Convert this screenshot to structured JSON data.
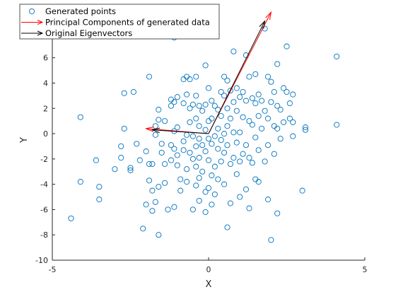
{
  "chart_data": {
    "type": "scatter",
    "xlabel": "X",
    "ylabel": "Y",
    "xlim": [
      -5,
      5
    ],
    "ylim": [
      -10,
      9
    ],
    "xticks": [
      -5,
      0,
      5
    ],
    "yticks": [
      -10,
      -8,
      -6,
      -4,
      -2,
      0,
      2,
      4,
      6,
      8
    ],
    "grid": false,
    "legend_position": "top-left",
    "legend": [
      {
        "label": "Generated points",
        "marker": "circle",
        "color": "#0072BD"
      },
      {
        "label": "Principal Components of generated data",
        "marker": "arrow",
        "color": "#FF0000"
      },
      {
        "label": "Original Eigenvectors",
        "marker": "arrow",
        "color": "#000000"
      }
    ],
    "series": [
      {
        "name": "Generated points",
        "color": "#0072BD",
        "points": [
          [
            -4.4,
            -6.7
          ],
          [
            -4.1,
            -3.8
          ],
          [
            -4.1,
            1.3
          ],
          [
            -3.6,
            -2.1
          ],
          [
            -3.5,
            -4.2
          ],
          [
            -3.5,
            -5.2
          ],
          [
            -3.0,
            -2.8
          ],
          [
            -2.8,
            -1.0
          ],
          [
            -2.8,
            -1.9
          ],
          [
            -2.7,
            3.2
          ],
          [
            -2.7,
            0.4
          ],
          [
            -2.5,
            -2.7
          ],
          [
            -2.5,
            -2.9
          ],
          [
            -2.4,
            3.3
          ],
          [
            -2.3,
            -0.8
          ],
          [
            -2.2,
            -2.1
          ],
          [
            -2.1,
            -7.5
          ],
          [
            -2.0,
            -1.4
          ],
          [
            -2.0,
            -5.6
          ],
          [
            -1.9,
            4.5
          ],
          [
            -1.9,
            -2.4
          ],
          [
            -1.9,
            -3.7
          ],
          [
            -1.8,
            -2.4
          ],
          [
            -1.8,
            -4.5
          ],
          [
            -1.8,
            -6.1
          ],
          [
            -1.7,
            -5.4
          ],
          [
            -1.7,
            0.6
          ],
          [
            -1.7,
            -0.1
          ],
          [
            -1.6,
            1.9
          ],
          [
            -1.6,
            1.1
          ],
          [
            -1.6,
            -4.2
          ],
          [
            -1.6,
            -8.0
          ],
          [
            -1.5,
            -0.8
          ],
          [
            -1.5,
            -1.5
          ],
          [
            -1.4,
            1.0
          ],
          [
            -1.4,
            -2.4
          ],
          [
            -1.4,
            -3.9
          ],
          [
            -1.3,
            -6.0
          ],
          [
            -1.2,
            2.7
          ],
          [
            -1.2,
            2.2
          ],
          [
            -1.2,
            -0.9
          ],
          [
            -1.2,
            -2.1
          ],
          [
            -1.1,
            7.6
          ],
          [
            -1.1,
            2.5
          ],
          [
            -1.1,
            0.2
          ],
          [
            -1.1,
            -1.2
          ],
          [
            -1.1,
            -5.8
          ],
          [
            -1.0,
            2.9
          ],
          [
            -1.0,
            0.5
          ],
          [
            -1.0,
            -1.7
          ],
          [
            -1.0,
            -2.5
          ],
          [
            -0.9,
            -3.6
          ],
          [
            -0.9,
            -4.5
          ],
          [
            -0.8,
            4.3
          ],
          [
            -0.8,
            2.4
          ],
          [
            -0.8,
            -0.6
          ],
          [
            -0.8,
            -1.3
          ],
          [
            -0.7,
            4.5
          ],
          [
            -0.7,
            3.1
          ],
          [
            -0.7,
            -0.1
          ],
          [
            -0.7,
            -2.8
          ],
          [
            -0.7,
            -3.8
          ],
          [
            -0.6,
            4.3
          ],
          [
            -0.6,
            2.0
          ],
          [
            -0.6,
            0.9
          ],
          [
            -0.6,
            -1.5
          ],
          [
            -0.5,
            2.3
          ],
          [
            -0.5,
            -0.2
          ],
          [
            -0.5,
            -2.0
          ],
          [
            -0.5,
            -6.0
          ],
          [
            -0.4,
            4.5
          ],
          [
            -0.4,
            3.0
          ],
          [
            -0.4,
            1.2
          ],
          [
            -0.4,
            -1.0
          ],
          [
            -0.4,
            -2.6
          ],
          [
            -0.4,
            -4.1
          ],
          [
            -0.3,
            2.2
          ],
          [
            -0.3,
            0.6
          ],
          [
            -0.3,
            -0.4
          ],
          [
            -0.3,
            -1.9
          ],
          [
            -0.3,
            -3.5
          ],
          [
            -0.3,
            -5.3
          ],
          [
            -0.2,
            1.8
          ],
          [
            -0.2,
            -0.9
          ],
          [
            -0.2,
            -3.0
          ],
          [
            -0.1,
            5.4
          ],
          [
            -0.1,
            2.3
          ],
          [
            -0.1,
            0.3
          ],
          [
            -0.1,
            -1.4
          ],
          [
            -0.1,
            -4.6
          ],
          [
            -0.1,
            -6.2
          ],
          [
            0.0,
            3.6
          ],
          [
            0.0,
            1.0
          ],
          [
            0.0,
            -0.4
          ],
          [
            0.0,
            -2.1
          ],
          [
            0.0,
            -4.3
          ],
          [
            0.1,
            2.6
          ],
          [
            0.1,
            1.2
          ],
          [
            0.1,
            -0.8
          ],
          [
            0.1,
            -3.3
          ],
          [
            0.1,
            -5.6
          ],
          [
            0.2,
            2.2
          ],
          [
            0.2,
            -0.2
          ],
          [
            0.2,
            -2.6
          ],
          [
            0.2,
            -4.8
          ],
          [
            0.3,
            1.9
          ],
          [
            0.3,
            0.4
          ],
          [
            0.3,
            -1.2
          ],
          [
            0.3,
            -3.6
          ],
          [
            0.4,
            3.3
          ],
          [
            0.4,
            1.4
          ],
          [
            0.4,
            -0.5
          ],
          [
            0.4,
            -2.2
          ],
          [
            0.5,
            4.5
          ],
          [
            0.5,
            3.0
          ],
          [
            0.5,
            0.0
          ],
          [
            0.5,
            -1.5
          ],
          [
            0.5,
            -4.0
          ],
          [
            0.6,
            4.2
          ],
          [
            0.6,
            2.0
          ],
          [
            0.6,
            0.6
          ],
          [
            0.6,
            -0.9
          ],
          [
            0.6,
            -7.4
          ],
          [
            0.7,
            3.4
          ],
          [
            0.7,
            1.2
          ],
          [
            0.7,
            -2.4
          ],
          [
            0.7,
            -5.5
          ],
          [
            0.8,
            6.5
          ],
          [
            0.8,
            2.5
          ],
          [
            0.8,
            0.1
          ],
          [
            0.8,
            -1.9
          ],
          [
            0.9,
            3.6
          ],
          [
            0.9,
            1.8
          ],
          [
            0.9,
            -0.7
          ],
          [
            0.9,
            -3.2
          ],
          [
            1.0,
            2.9
          ],
          [
            1.0,
            0.1
          ],
          [
            1.0,
            -2.2
          ],
          [
            1.0,
            -5.0
          ],
          [
            1.1,
            3.3
          ],
          [
            1.1,
            1.3
          ],
          [
            1.1,
            -1.6
          ],
          [
            1.2,
            6.2
          ],
          [
            1.2,
            2.6
          ],
          [
            1.2,
            -0.9
          ],
          [
            1.2,
            -4.4
          ],
          [
            1.3,
            4.5
          ],
          [
            1.3,
            1.0
          ],
          [
            1.3,
            -1.9
          ],
          [
            1.3,
            -5.9
          ],
          [
            1.4,
            2.8
          ],
          [
            1.4,
            0.7
          ],
          [
            1.4,
            -2.3
          ],
          [
            1.5,
            4.7
          ],
          [
            1.5,
            2.4
          ],
          [
            1.5,
            -0.3
          ],
          [
            1.5,
            -3.6
          ],
          [
            1.6,
            3.1
          ],
          [
            1.6,
            1.4
          ],
          [
            1.6,
            -1.3
          ],
          [
            1.6,
            -3.8
          ],
          [
            1.7,
            2.6
          ],
          [
            1.7,
            0.4
          ],
          [
            1.8,
            8.3
          ],
          [
            1.8,
            1.8
          ],
          [
            1.8,
            -2.2
          ],
          [
            1.9,
            4.5
          ],
          [
            1.9,
            1.2
          ],
          [
            1.9,
            -0.9
          ],
          [
            1.9,
            -5.2
          ],
          [
            2.0,
            4.1
          ],
          [
            2.0,
            2.5
          ],
          [
            2.0,
            -8.4
          ],
          [
            2.1,
            3.3
          ],
          [
            2.1,
            0.6
          ],
          [
            2.1,
            -1.6
          ],
          [
            2.2,
            5.5
          ],
          [
            2.2,
            2.2
          ],
          [
            2.2,
            0.4
          ],
          [
            2.2,
            -6.3
          ],
          [
            2.3,
            1.9
          ],
          [
            2.3,
            -0.4
          ],
          [
            2.4,
            3.6
          ],
          [
            2.4,
            0.9
          ],
          [
            2.5,
            6.9
          ],
          [
            2.5,
            3.3
          ],
          [
            2.6,
            2.4
          ],
          [
            2.6,
            1.2
          ],
          [
            2.7,
            3.1
          ],
          [
            2.7,
            0.9
          ],
          [
            2.7,
            -0.2
          ],
          [
            3.0,
            -4.5
          ],
          [
            3.1,
            0.3
          ],
          [
            3.1,
            0.5
          ],
          [
            4.1,
            6.1
          ],
          [
            4.1,
            0.7
          ]
        ]
      }
    ],
    "arrows": [
      {
        "name": "Principal Components of generated data",
        "color": "#FF0000",
        "vectors": [
          {
            "from": [
              0,
              0
            ],
            "to": [
              2.0,
              9.6
            ]
          },
          {
            "from": [
              0,
              0
            ],
            "to": [
              -2.0,
              0.4
            ]
          }
        ]
      },
      {
        "name": "Original Eigenvectors",
        "color": "#000000",
        "vectors": [
          {
            "from": [
              0,
              0
            ],
            "to": [
              1.8,
              8.9
            ]
          },
          {
            "from": [
              0,
              0
            ],
            "to": [
              -1.8,
              0.3
            ]
          }
        ]
      }
    ]
  }
}
